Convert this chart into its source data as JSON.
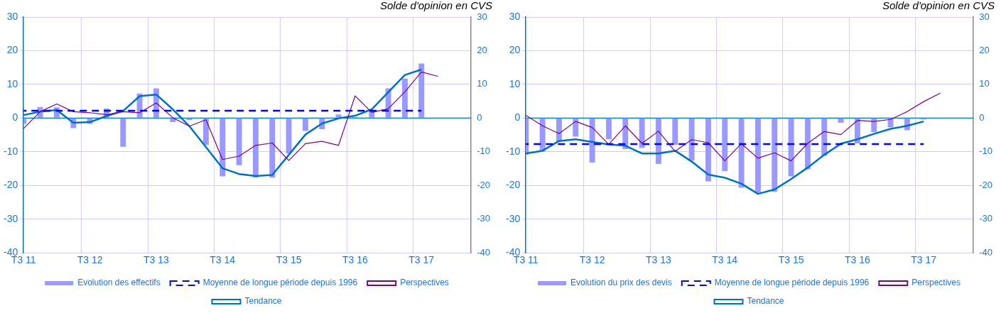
{
  "chart_data": [
    {
      "type": "bar",
      "title": "Solde d'opinion en CVS",
      "categories": [
        "T3 11",
        null,
        null,
        null,
        "T3 12",
        null,
        null,
        null,
        "T3 13",
        null,
        null,
        null,
        "T3 14",
        null,
        null,
        null,
        "T3 15",
        null,
        null,
        null,
        "T3 16",
        null,
        null,
        null,
        "T3 17",
        null,
        null,
        null
      ],
      "series": [
        {
          "name": "Evolution des effectifs",
          "color": "#9999ff",
          "values": [
            -1.7,
            3.3,
            3.2,
            -3.0,
            -1.7,
            2.8,
            -8.5,
            7.3,
            8.8,
            -1.2,
            -0.6,
            -8.0,
            -17.3,
            -14.0,
            -17.7,
            -17.7,
            -10.5,
            -3.8,
            -3.3,
            1.1,
            0.3,
            2.3,
            8.8,
            11.7,
            16.2,
            null,
            null,
            null
          ]
        },
        {
          "name": "Moyenne de longue période depuis 1996",
          "type": "line",
          "line_style": "dashed",
          "color": "#0000ff",
          "values": [
            2.2,
            2.2,
            2.2,
            2.2,
            2.2,
            2.2,
            2.2,
            2.2,
            2.2,
            2.2,
            2.2,
            2.2,
            2.2,
            2.2,
            2.2,
            2.2,
            2.2,
            2.2,
            2.2,
            2.2,
            2.2,
            2.2,
            2.2,
            2.2,
            2.2,
            null,
            null,
            null
          ]
        },
        {
          "name": "Perspectives",
          "type": "line",
          "line_style": "solid",
          "color": "#800080",
          "values": [
            -3.1,
            1.9,
            4.2,
            1.9,
            1.6,
            1.0,
            1.9,
            1.6,
            4.5,
            0.1,
            -2.4,
            -0.5,
            -12.3,
            -11.3,
            -8.1,
            -7.4,
            -12.6,
            -7.6,
            -6.9,
            -8.1,
            6.6,
            1.7,
            2.8,
            7.8,
            13.7,
            12.4,
            null,
            null
          ]
        },
        {
          "name": "Tendance",
          "type": "line",
          "line_style": "solid",
          "color": "#0070c0",
          "values": [
            0.9,
            1.9,
            2.4,
            -1.4,
            -1.2,
            0.6,
            2.1,
            6.5,
            7.0,
            2.6,
            -2.4,
            -8.6,
            -14.9,
            -16.6,
            -17.2,
            -16.9,
            -10.9,
            -4.9,
            -1.6,
            -0.1,
            0.7,
            2.6,
            7.7,
            12.8,
            14.4,
            null,
            null,
            null
          ]
        }
      ],
      "ylim": [
        -40,
        30
      ],
      "yticks": [
        -40,
        -30,
        -20,
        -10,
        0,
        10,
        20,
        30
      ],
      "y2lim": [
        -40,
        30
      ],
      "y2ticks": [
        -40,
        -30,
        -20,
        -10,
        0,
        10,
        20,
        30
      ],
      "ref_lines": [
        {
          "axis": "y",
          "value": 0,
          "color": "#0070c0"
        }
      ],
      "grid": true,
      "legend": "bottom",
      "marker": "none"
    },
    {
      "type": "bar",
      "title": "Solde d'opinion en CVS",
      "categories": [
        "T3 11",
        null,
        null,
        null,
        "T3 12",
        null,
        null,
        null,
        "T3 13",
        null,
        null,
        null,
        "T3 14",
        null,
        null,
        null,
        "T3 15",
        null,
        null,
        null,
        "T3 16",
        null,
        null,
        null,
        "T3 17",
        null,
        null,
        null
      ],
      "series": [
        {
          "name": "Evolution du prix des devis",
          "color": "#9999ff",
          "values": [
            -10.8,
            -10.0,
            -7.0,
            -5.5,
            -13.2,
            -6.3,
            -9.2,
            -8.9,
            -13.6,
            -8.0,
            -12.6,
            -18.8,
            -15.7,
            -20.7,
            -22.1,
            -21.9,
            -17.3,
            -15.2,
            -11.2,
            -1.4,
            -7.5,
            -4.2,
            -2.7,
            -3.6,
            -0.4,
            null,
            null,
            null
          ]
        },
        {
          "name": "Moyenne de longue période depuis 1996",
          "type": "line",
          "line_style": "dashed",
          "color": "#0000ff",
          "values": [
            -7.7,
            -7.7,
            -7.7,
            -7.7,
            -7.7,
            -7.7,
            -7.7,
            -7.7,
            -7.7,
            -7.7,
            -7.7,
            -7.7,
            -7.7,
            -7.7,
            -7.7,
            -7.7,
            -7.7,
            -7.7,
            -7.7,
            -7.7,
            -7.7,
            -7.7,
            -7.7,
            -7.7,
            -7.7,
            null,
            null,
            null
          ]
        },
        {
          "name": "Perspectives",
          "type": "line",
          "line_style": "solid",
          "color": "#800080",
          "values": [
            0.8,
            -2.3,
            -4.6,
            -1.0,
            -2.8,
            -7.8,
            -2.3,
            -7.5,
            -3.9,
            -9.9,
            -6.4,
            -7.3,
            -12.7,
            -7.6,
            -11.9,
            -10.3,
            -12.7,
            -7.5,
            -4.0,
            -4.9,
            -0.7,
            -1.0,
            -0.4,
            1.9,
            4.9,
            7.4,
            null,
            null
          ]
        },
        {
          "name": "Tendance",
          "type": "line",
          "line_style": "solid",
          "color": "#0070c0",
          "values": [
            -10.5,
            -9.7,
            -6.8,
            -6.3,
            -7.1,
            -7.8,
            -8.2,
            -10.5,
            -10.5,
            -9.7,
            -12.9,
            -16.8,
            -17.7,
            -19.5,
            -22.5,
            -21.2,
            -18.1,
            -14.7,
            -10.9,
            -7.6,
            -6.3,
            -4.7,
            -3.2,
            -2.3,
            -1.0,
            null,
            null,
            null
          ]
        }
      ],
      "ylim": [
        -40,
        30
      ],
      "yticks": [
        -40,
        -30,
        -20,
        -10,
        0,
        10,
        20,
        30
      ],
      "y2lim": [
        -40,
        30
      ],
      "y2ticks": [
        -40,
        -30,
        -20,
        -10,
        0,
        10,
        20,
        30
      ],
      "ref_lines": [
        {
          "axis": "y",
          "value": 0,
          "color": "#0070c0"
        }
      ],
      "grid": true,
      "legend": "bottom",
      "marker": "none"
    }
  ]
}
